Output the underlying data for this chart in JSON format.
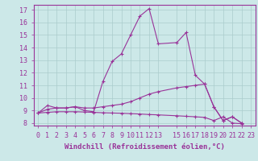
{
  "background_color": "#cce8e8",
  "line_color": "#993399",
  "grid_color": "#aacccc",
  "xlabel": "Windchill (Refroidissement éolien,°C)",
  "xlabel_fontsize": 6.5,
  "tick_fontsize": 6.0,
  "xlim": [
    -0.5,
    23.5
  ],
  "ylim": [
    7.8,
    17.4
  ],
  "yticks": [
    8,
    9,
    10,
    11,
    12,
    13,
    14,
    15,
    16,
    17
  ],
  "xticks": [
    0,
    1,
    2,
    3,
    4,
    5,
    6,
    7,
    8,
    9,
    10,
    11,
    12,
    13,
    15,
    16,
    17,
    18,
    19,
    20,
    21,
    22,
    23
  ],
  "series1": [
    [
      0,
      8.8
    ],
    [
      1,
      9.4
    ],
    [
      2,
      9.2
    ],
    [
      3,
      9.2
    ],
    [
      4,
      9.3
    ],
    [
      5,
      9.0
    ],
    [
      6,
      8.9
    ],
    [
      7,
      11.3
    ],
    [
      8,
      12.9
    ],
    [
      9,
      13.5
    ],
    [
      10,
      15.0
    ],
    [
      11,
      16.5
    ],
    [
      12,
      17.1
    ],
    [
      13,
      14.3
    ],
    [
      15,
      14.4
    ],
    [
      16,
      15.2
    ],
    [
      17,
      11.8
    ],
    [
      18,
      11.1
    ],
    [
      19,
      9.3
    ],
    [
      20,
      8.2
    ],
    [
      21,
      8.5
    ],
    [
      22,
      8.0
    ]
  ],
  "series2": [
    [
      0,
      8.8
    ],
    [
      1,
      9.1
    ],
    [
      2,
      9.2
    ],
    [
      3,
      9.2
    ],
    [
      4,
      9.3
    ],
    [
      5,
      9.2
    ],
    [
      6,
      9.2
    ],
    [
      7,
      9.3
    ],
    [
      8,
      9.4
    ],
    [
      9,
      9.5
    ],
    [
      10,
      9.7
    ],
    [
      11,
      10.0
    ],
    [
      12,
      10.3
    ],
    [
      13,
      10.5
    ],
    [
      15,
      10.8
    ],
    [
      16,
      10.9
    ],
    [
      17,
      11.0
    ],
    [
      18,
      11.1
    ],
    [
      19,
      9.3
    ],
    [
      20,
      8.2
    ],
    [
      21,
      8.5
    ],
    [
      22,
      8.0
    ]
  ],
  "series3": [
    [
      0,
      8.8
    ],
    [
      1,
      8.85
    ],
    [
      2,
      8.9
    ],
    [
      3,
      8.9
    ],
    [
      4,
      8.9
    ],
    [
      5,
      8.88
    ],
    [
      6,
      8.85
    ],
    [
      7,
      8.82
    ],
    [
      8,
      8.8
    ],
    [
      9,
      8.78
    ],
    [
      10,
      8.75
    ],
    [
      11,
      8.72
    ],
    [
      12,
      8.68
    ],
    [
      13,
      8.65
    ],
    [
      15,
      8.58
    ],
    [
      16,
      8.54
    ],
    [
      17,
      8.5
    ],
    [
      18,
      8.45
    ],
    [
      19,
      8.2
    ],
    [
      20,
      8.5
    ],
    [
      21,
      8.0
    ],
    [
      22,
      7.95
    ]
  ]
}
